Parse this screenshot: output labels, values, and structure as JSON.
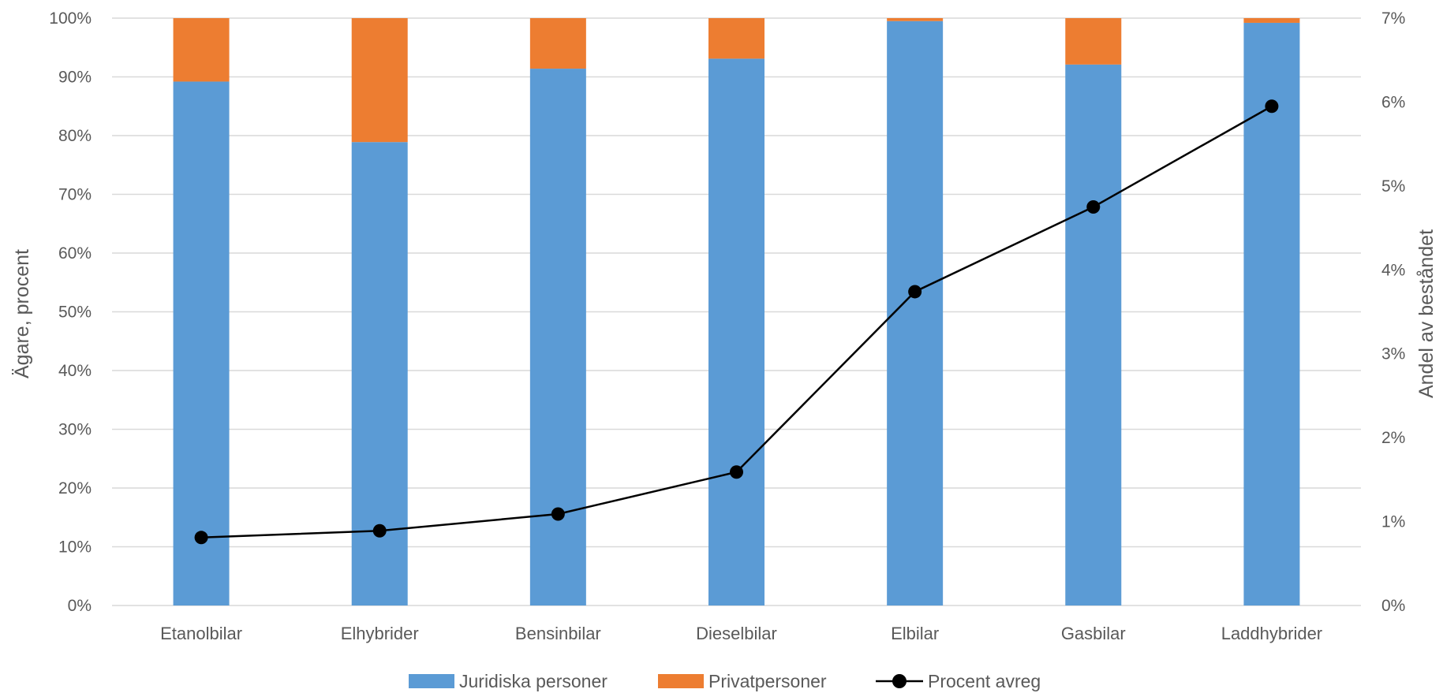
{
  "chart_data": {
    "type": "bar",
    "stacked": true,
    "categories": [
      "Etanolbilar",
      "Elhybrider",
      "Bensinbilar",
      "Dieselbilar",
      "Elbilar",
      "Gasbilar",
      "Laddhybrider"
    ],
    "series": [
      {
        "name": "Juridiska personer",
        "type": "bar",
        "axis": "left",
        "color": "#5b9bd5",
        "values": [
          89.2,
          78.9,
          91.4,
          93.1,
          99.5,
          92.1,
          99.2
        ]
      },
      {
        "name": "Privatpersoner",
        "type": "bar",
        "axis": "left",
        "color": "#ed7d31",
        "values": [
          10.8,
          21.1,
          8.6,
          6.9,
          0.5,
          7.9,
          0.8
        ]
      },
      {
        "name": "Procent avreg",
        "type": "line",
        "axis": "right",
        "color": "#000000",
        "values": [
          0.81,
          0.89,
          1.09,
          1.59,
          3.74,
          4.75,
          5.95
        ]
      }
    ],
    "ylabel": "Ägare, procent",
    "y2label": "Andel av beståndet",
    "ylim": [
      0,
      100
    ],
    "y2lim": [
      0,
      7
    ],
    "yticks": [
      "0%",
      "10%",
      "20%",
      "30%",
      "40%",
      "50%",
      "60%",
      "70%",
      "80%",
      "90%",
      "100%"
    ],
    "y2ticks": [
      "0%",
      "1%",
      "2%",
      "3%",
      "4%",
      "5%",
      "6%",
      "7%"
    ],
    "grid": true,
    "legend_position": "bottom"
  }
}
